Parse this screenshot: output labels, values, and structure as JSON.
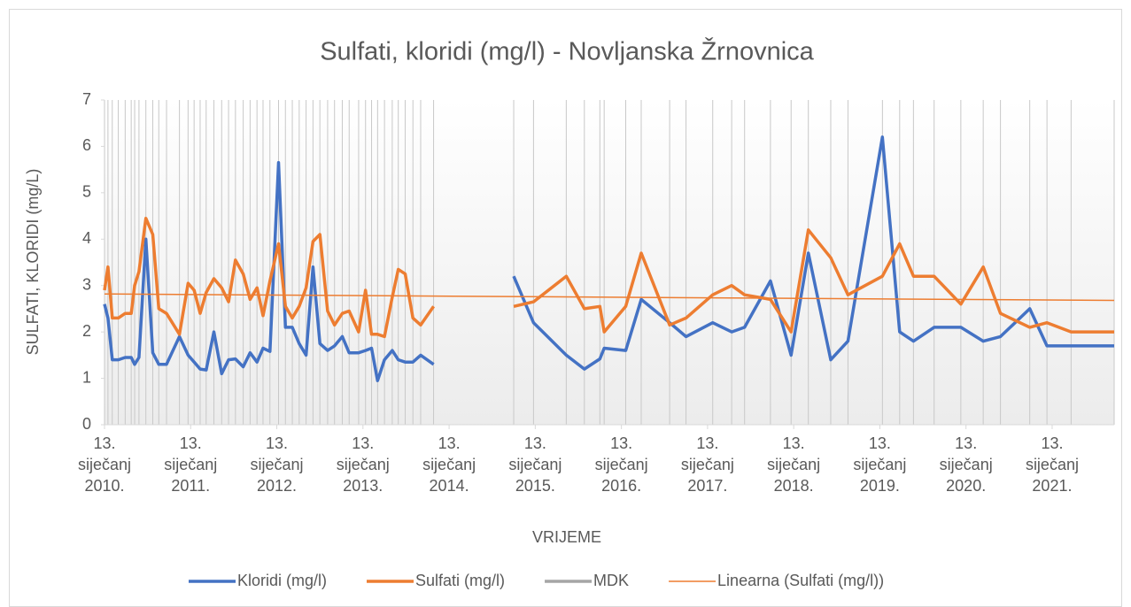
{
  "chart_data": {
    "type": "line",
    "title": "Sulfati, kloridi (mg/l) - Novljanska Žrnovnica",
    "xlabel": "VRIJEME",
    "ylabel": "SULFATI, KLORIDI (mg/L)",
    "x": [
      2010.0,
      2010.04,
      2010.09,
      2010.16,
      2010.24,
      2010.31,
      2010.35,
      2010.4,
      2010.48,
      2010.56,
      2010.63,
      2010.72,
      2010.87,
      2010.97,
      2011.04,
      2011.11,
      2011.18,
      2011.27,
      2011.36,
      2011.44,
      2011.52,
      2011.61,
      2011.69,
      2011.77,
      2011.84,
      2011.92,
      2012.02,
      2012.1,
      2012.18,
      2012.26,
      2012.34,
      2012.42,
      2012.5,
      2012.59,
      2012.67,
      2012.76,
      2012.84,
      2012.95,
      2013.03,
      2013.1,
      2013.17,
      2013.25,
      2013.34,
      2013.41,
      2013.49,
      2013.58,
      2013.67,
      2013.82,
      2014.3,
      2014.75,
      2014.98,
      2015.36,
      2015.57,
      2015.75,
      2015.8,
      2016.05,
      2016.23,
      2016.56,
      2016.75,
      2017.06,
      2017.28,
      2017.43,
      2017.73,
      2017.97,
      2018.17,
      2018.43,
      2018.63,
      2019.03,
      2019.23,
      2019.39,
      2019.63,
      2019.94,
      2020.2,
      2020.4,
      2020.74,
      2020.94,
      2021.22,
      2021.72
    ],
    "series": [
      {
        "name": "Kloridi (mg/l)",
        "color": "#4472c4",
        "values": [
          2.6,
          2.3,
          1.4,
          1.4,
          1.45,
          1.45,
          1.3,
          1.45,
          4.0,
          1.55,
          1.3,
          1.3,
          1.9,
          1.5,
          1.35,
          1.2,
          1.18,
          2.0,
          1.1,
          1.4,
          1.42,
          1.25,
          1.55,
          1.35,
          1.65,
          1.58,
          5.65,
          2.1,
          2.1,
          1.75,
          1.5,
          3.4,
          1.75,
          1.6,
          1.7,
          1.9,
          1.55,
          1.55,
          1.6,
          1.65,
          0.95,
          1.4,
          1.6,
          1.4,
          1.35,
          1.35,
          1.5,
          1.3,
          null,
          3.2,
          2.2,
          1.5,
          1.2,
          1.42,
          1.65,
          1.6,
          2.7,
          2.2,
          1.9,
          2.2,
          2.0,
          2.1,
          3.1,
          1.5,
          3.7,
          1.4,
          1.8,
          6.2,
          2.0,
          1.8,
          2.1,
          2.1,
          1.8,
          1.9,
          2.5,
          1.7,
          1.7,
          1.7
        ]
      },
      {
        "name": "Sulfati (mg/l)",
        "color": "#ed7d31",
        "values": [
          2.9,
          3.4,
          2.3,
          2.3,
          2.4,
          2.4,
          3.0,
          3.3,
          4.45,
          4.1,
          2.5,
          2.4,
          1.95,
          3.05,
          2.9,
          2.4,
          2.85,
          3.15,
          2.95,
          2.65,
          3.55,
          3.25,
          2.7,
          2.95,
          2.35,
          3.1,
          3.9,
          2.55,
          2.3,
          2.55,
          2.95,
          3.95,
          4.1,
          2.45,
          2.15,
          2.4,
          2.45,
          2.0,
          2.9,
          1.95,
          1.95,
          1.9,
          2.75,
          3.35,
          3.25,
          2.3,
          2.15,
          2.55,
          null,
          2.55,
          2.65,
          3.2,
          2.5,
          2.55,
          2.0,
          2.55,
          3.7,
          2.15,
          2.3,
          2.8,
          3.0,
          2.8,
          2.7,
          2.0,
          4.2,
          3.6,
          2.8,
          3.2,
          3.9,
          3.2,
          3.2,
          2.6,
          3.4,
          2.4,
          2.1,
          2.2,
          2.0,
          2.0
        ]
      },
      {
        "name": "MDK",
        "color": "#a5a5a5",
        "x": [],
        "values": []
      },
      {
        "name": "Linearna (Sulfati (mg/l))",
        "color": "#ed7d31",
        "trend": true,
        "x": [
          2010.0,
          2021.72
        ],
        "values": [
          2.82,
          2.68
        ]
      }
    ],
    "xlim": [
      2010.0,
      2021.72
    ],
    "xticks": [
      {
        "value": 2010,
        "label": "13. siječanj 2010."
      },
      {
        "value": 2011,
        "label": "13. siječanj 2011."
      },
      {
        "value": 2012,
        "label": "13. siječanj 2012."
      },
      {
        "value": 2013,
        "label": "13. siječanj 2013."
      },
      {
        "value": 2014,
        "label": "13. siječanj 2014."
      },
      {
        "value": 2015,
        "label": "13. siječanj 2015."
      },
      {
        "value": 2016,
        "label": "13. siječanj 2016."
      },
      {
        "value": 2017,
        "label": "13. siječanj 2017."
      },
      {
        "value": 2018,
        "label": "13. siječanj 2018."
      },
      {
        "value": 2019,
        "label": "13. siječanj 2019."
      },
      {
        "value": 2020,
        "label": "13. siječanj 2020."
      },
      {
        "value": 2021,
        "label": "13. siječanj 2021."
      }
    ],
    "ylim": [
      0,
      7
    ],
    "yticks": [
      0,
      1,
      2,
      3,
      4,
      5,
      6,
      7
    ],
    "xgrid": true,
    "legend": "bottom"
  }
}
